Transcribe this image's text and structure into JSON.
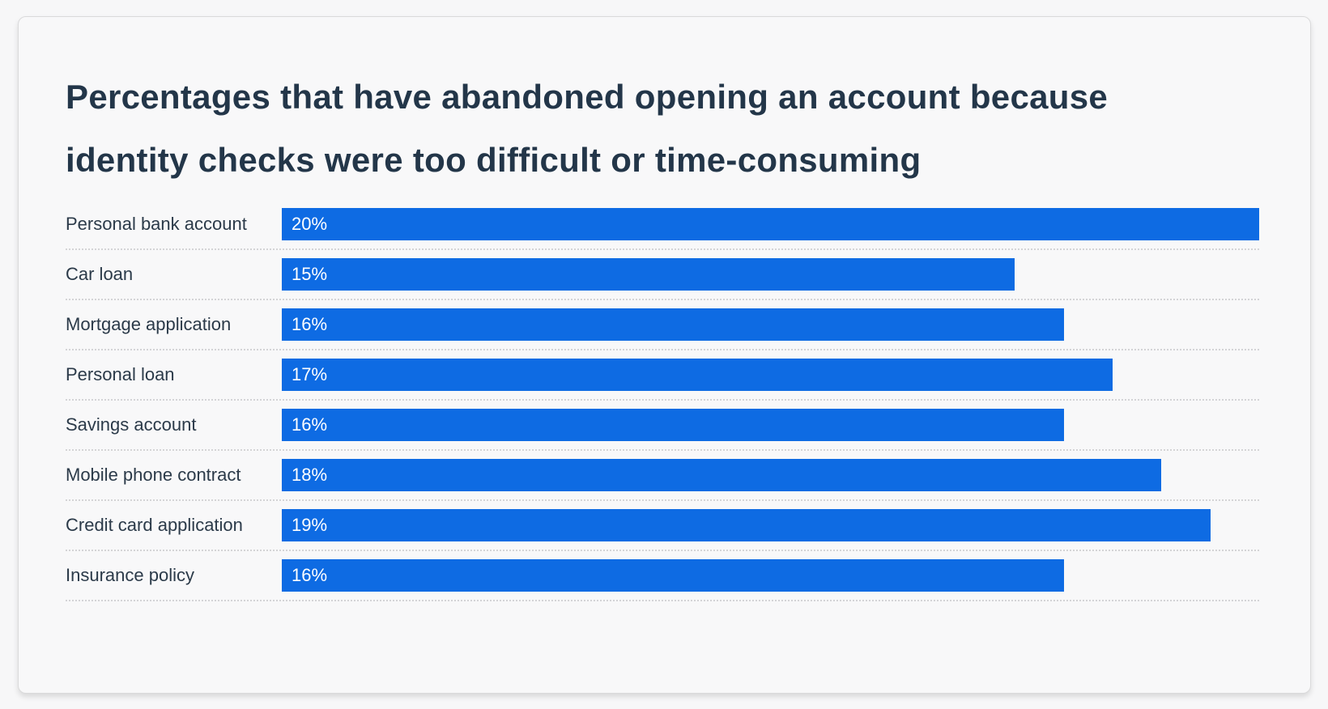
{
  "page": {
    "background": "#f7f7f8"
  },
  "header": {
    "title_lines": [
      "Percentages that have abandoned opening an account because",
      "identity checks were too difficult or time-consuming"
    ]
  },
  "chart_data": {
    "type": "bar",
    "orientation": "horizontal",
    "title": "Percentages that have abandoned opening an account because identity checks were too difficult or time-consuming",
    "categories": [
      "Personal bank account",
      "Car loan",
      "Mortgage application",
      "Personal loan",
      "Savings account",
      "Mobile phone contract",
      "Credit card application",
      "Insurance policy"
    ],
    "values": [
      20,
      15,
      16,
      17,
      16,
      18,
      19,
      16
    ],
    "value_labels": [
      "20%",
      "15%",
      "16%",
      "17%",
      "16%",
      "18%",
      "19%",
      "16%"
    ],
    "unit": "%",
    "xlim": [
      0,
      20
    ],
    "grid": false,
    "legend": false,
    "value_label_position": "inside-start",
    "bar_color": "#0e6be3"
  },
  "colors": {
    "bar": "#0e6be3",
    "bar_value_text": "#ffffff",
    "title_text": "#233649",
    "label_text": "#2b3a49",
    "divider": "#d4d4d6",
    "card_background": "#f8f8f9",
    "card_border": "#dadadb",
    "page_background": "#f7f7f8"
  }
}
